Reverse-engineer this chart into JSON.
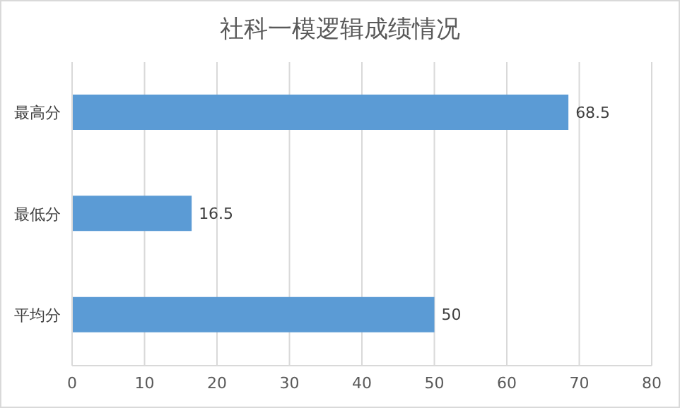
{
  "chart_data": {
    "type": "bar",
    "orientation": "horizontal",
    "title": "社科一模逻辑成绩情况",
    "categories": [
      "最高分",
      "最低分",
      "平均分"
    ],
    "values": [
      68.5,
      16.5,
      50
    ],
    "color": "#5b9bd5",
    "xlim": [
      0,
      80
    ],
    "xticks": [
      0,
      10,
      20,
      30,
      40,
      50,
      60,
      70,
      80
    ],
    "grid": "x",
    "data_labels": true
  }
}
